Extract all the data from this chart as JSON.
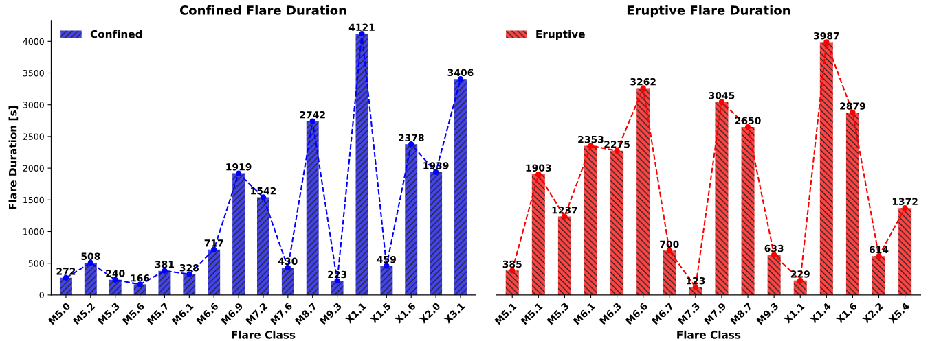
{
  "chart_data": [
    {
      "type": "bar",
      "title": "Confined Flare Duration",
      "xlabel": "Flare Class",
      "ylabel": "Flare Duration [s]",
      "categories": [
        "M5.0",
        "M5.2",
        "M5.3",
        "M5.6",
        "M5.7",
        "M6.1",
        "M6.6",
        "M6.9",
        "M7.2",
        "M7.6",
        "M8.7",
        "M9.3",
        "X1.1",
        "X1.5",
        "X1.6",
        "X2.0",
        "X3.1"
      ],
      "series": [
        {
          "name": "Confined",
          "color": "#4444ee",
          "values": [
            272,
            508,
            240,
            166,
            381,
            328,
            717,
            1919,
            1542,
            430,
            2742,
            223,
            4121,
            459,
            2378,
            1939,
            3406
          ],
          "value_labels": [
            "272",
            "508",
            "240",
            "166",
            "381",
            "328",
            "717",
            "1919",
            "1542",
            "430",
            "2742",
            "223",
            "4121",
            "459",
            "2378",
            "1939",
            "3406"
          ]
        },
        {
          "type": "line",
          "color": "#0000ff",
          "values": [
            272,
            508,
            240,
            166,
            381,
            328,
            717,
            1919,
            1542,
            430,
            2742,
            223,
            4121,
            459,
            2378,
            1939,
            3406
          ]
        }
      ],
      "ylim": [
        0,
        4330
      ],
      "yticks": [
        0,
        500,
        1000,
        1500,
        2000,
        2500,
        3000,
        3500,
        4000
      ],
      "legend": "top left",
      "marker": "circle",
      "line_style": "dashed",
      "grid": false
    },
    {
      "type": "bar",
      "title": "Eruptive Flare Duration",
      "xlabel": "Flare Class",
      "categories": [
        "M5.1",
        "M5.1",
        "M5.3",
        "M6.1",
        "M6.3",
        "M6.6",
        "M6.7",
        "M7.3",
        "M7.9",
        "M8.7",
        "M9.3",
        "X1.1",
        "X1.4",
        "X1.6",
        "X2.2",
        "X5.4"
      ],
      "series": [
        {
          "name": "Eruptive",
          "color": "#ff4444",
          "values": [
            385,
            1903,
            1237,
            2353,
            2275,
            3262,
            700,
            123,
            3045,
            2650,
            633,
            229,
            3987,
            2879,
            614,
            1372
          ],
          "value_labels": [
            "385",
            "1903",
            "1237",
            "2353",
            "2275",
            "3262",
            "700",
            "123",
            "3045",
            "2650",
            "633",
            "229",
            "3987",
            "2879",
            "614",
            "1372"
          ]
        },
        {
          "type": "line",
          "color": "#ff0000",
          "values": [
            385,
            1903,
            1237,
            2353,
            2275,
            3262,
            700,
            123,
            3045,
            2650,
            633,
            229,
            3987,
            2879,
            614,
            1372
          ]
        }
      ],
      "tick_labels": "x",
      "legend": "top left",
      "marker": "circle",
      "line_style": "dashed",
      "grid": false
    }
  ]
}
